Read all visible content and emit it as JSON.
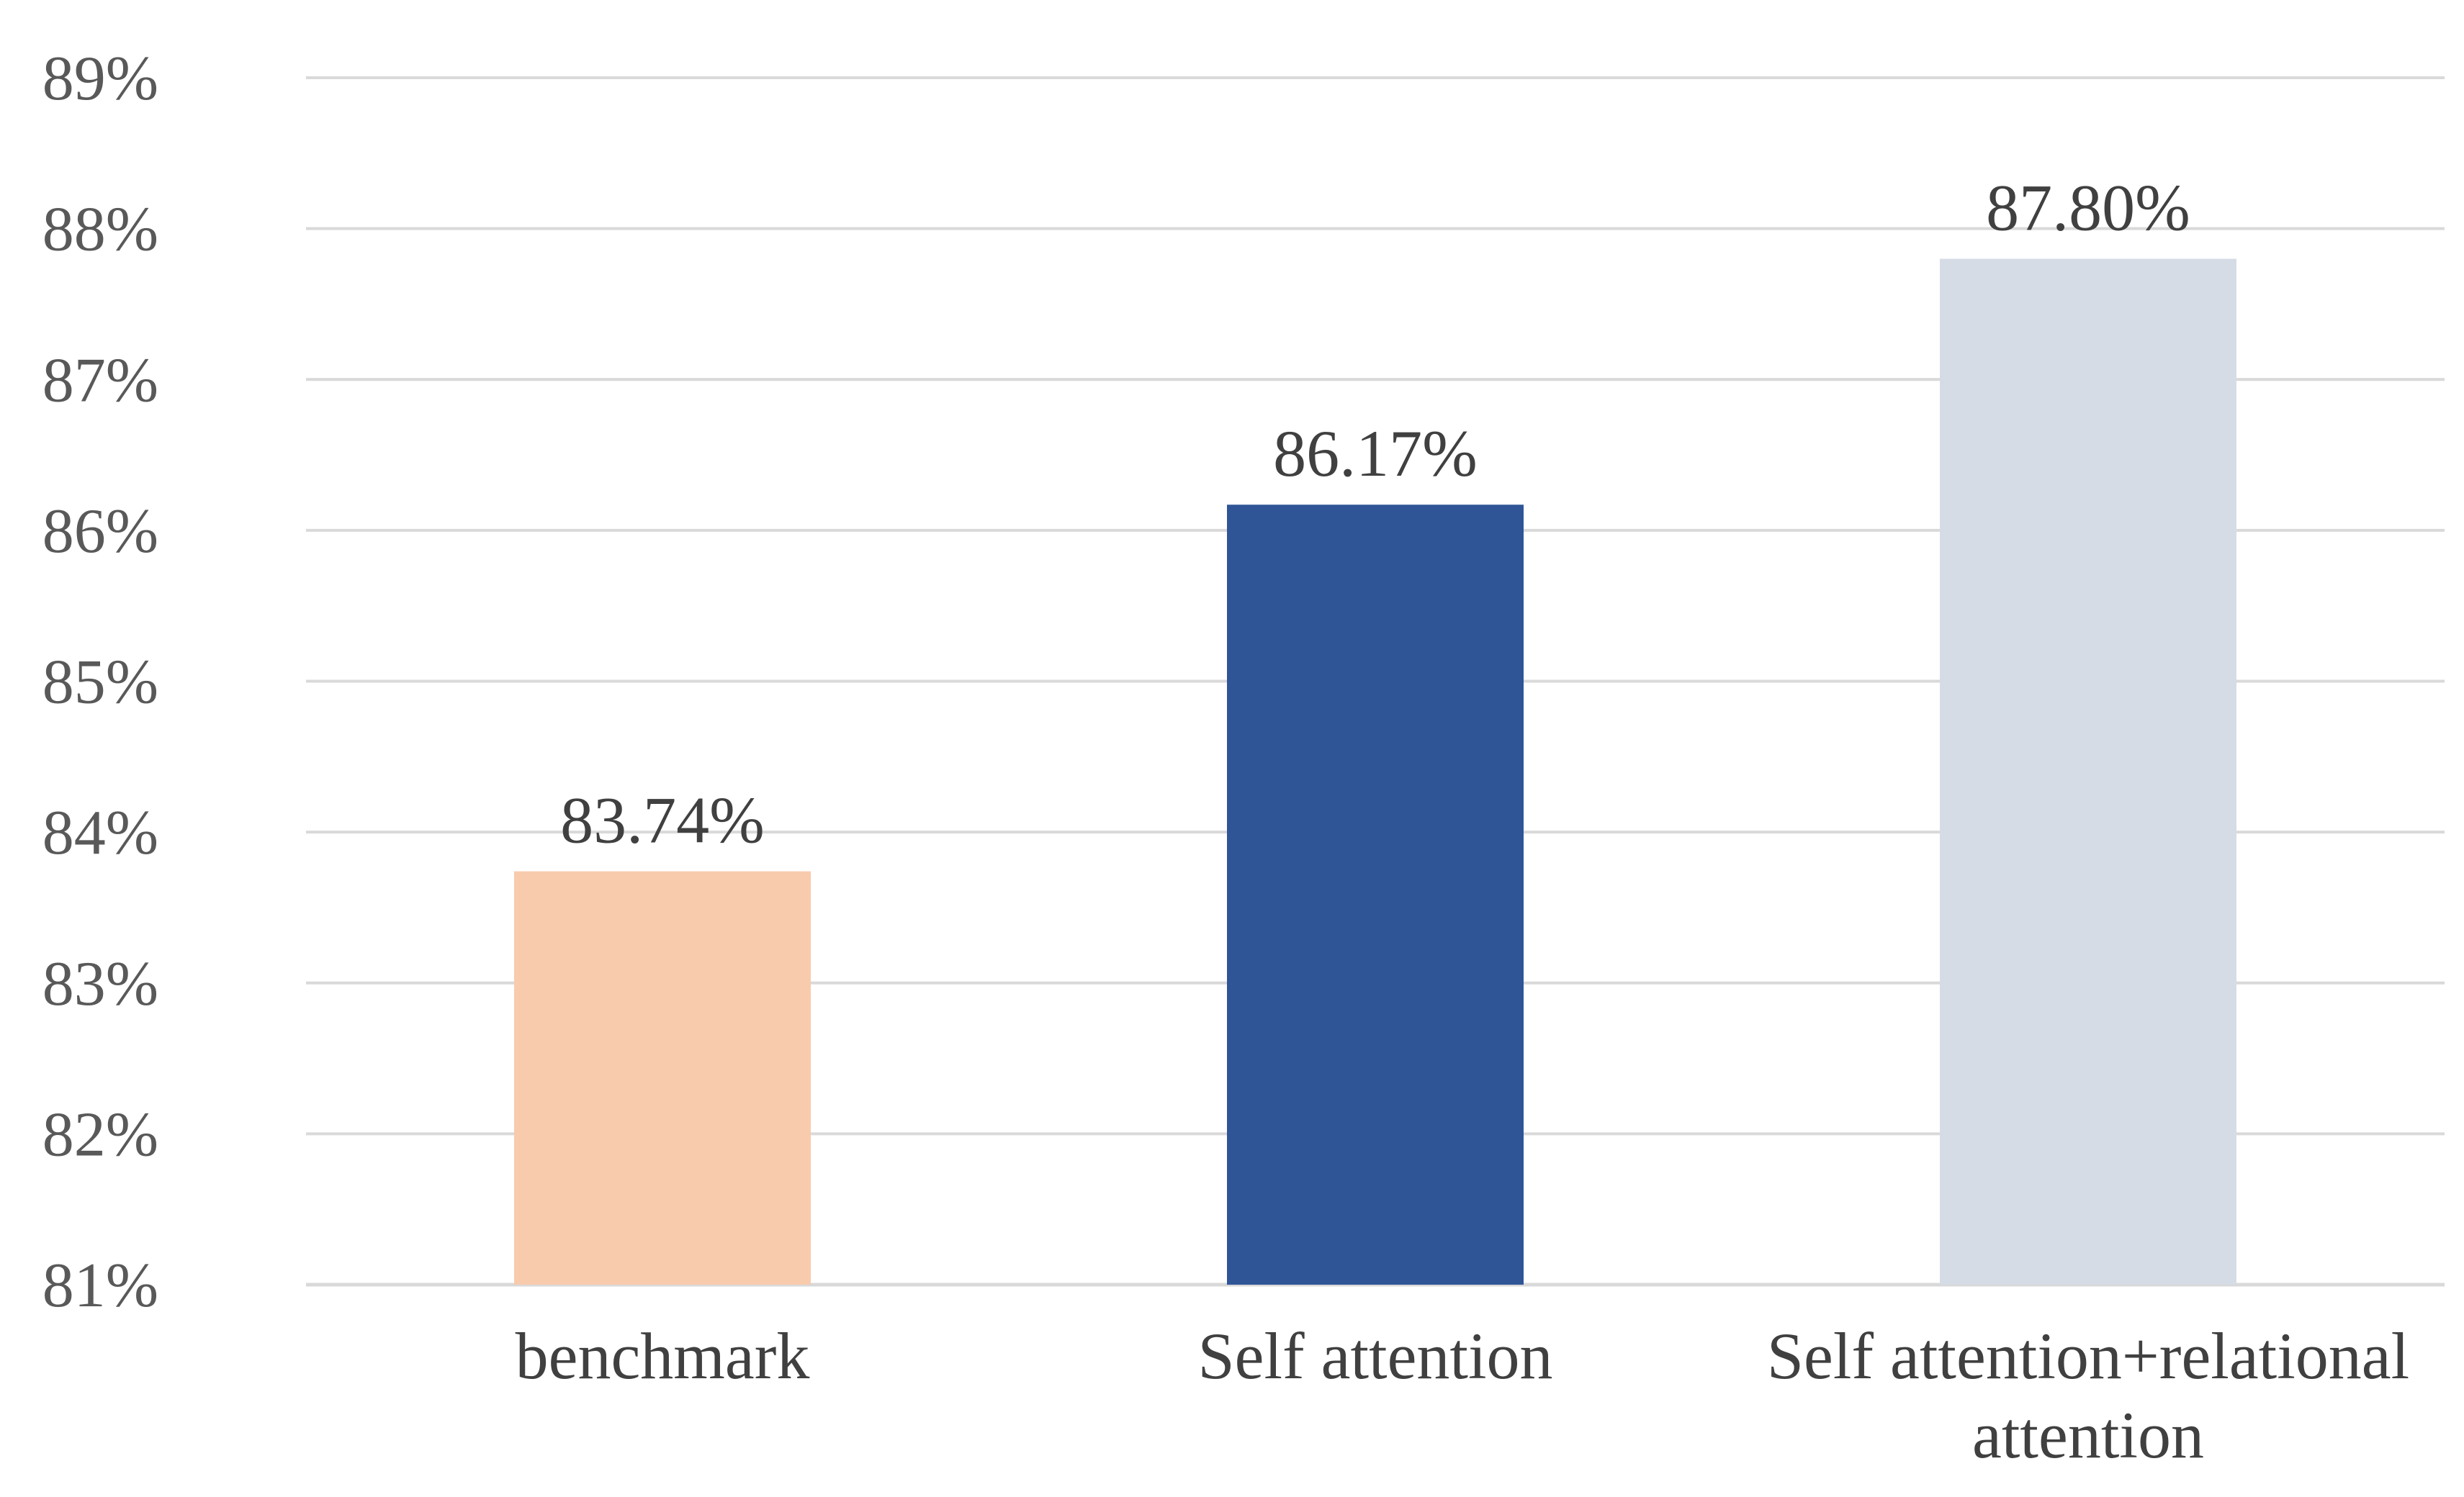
{
  "chart_data": {
    "type": "bar",
    "title": "",
    "xlabel": "",
    "ylabel": "",
    "categories": [
      [
        "benchmark"
      ],
      [
        "Self attention"
      ],
      [
        "Self attention+relational",
        "attention"
      ]
    ],
    "values": [
      83.74,
      86.17,
      87.8
    ],
    "data_labels": [
      "83.74%",
      "86.17%",
      "87.80%"
    ],
    "colors": [
      "#F8CBAD",
      "#2F5597",
      "#D6DCE5"
    ],
    "ylim": [
      81,
      89
    ],
    "yticks": [
      81,
      82,
      83,
      84,
      85,
      86,
      87,
      88,
      89
    ],
    "ytick_labels": [
      "81%",
      "82%",
      "83%",
      "84%",
      "85%",
      "86%",
      "87%",
      "88%",
      "89%"
    ],
    "grid": true,
    "legend": "none"
  }
}
